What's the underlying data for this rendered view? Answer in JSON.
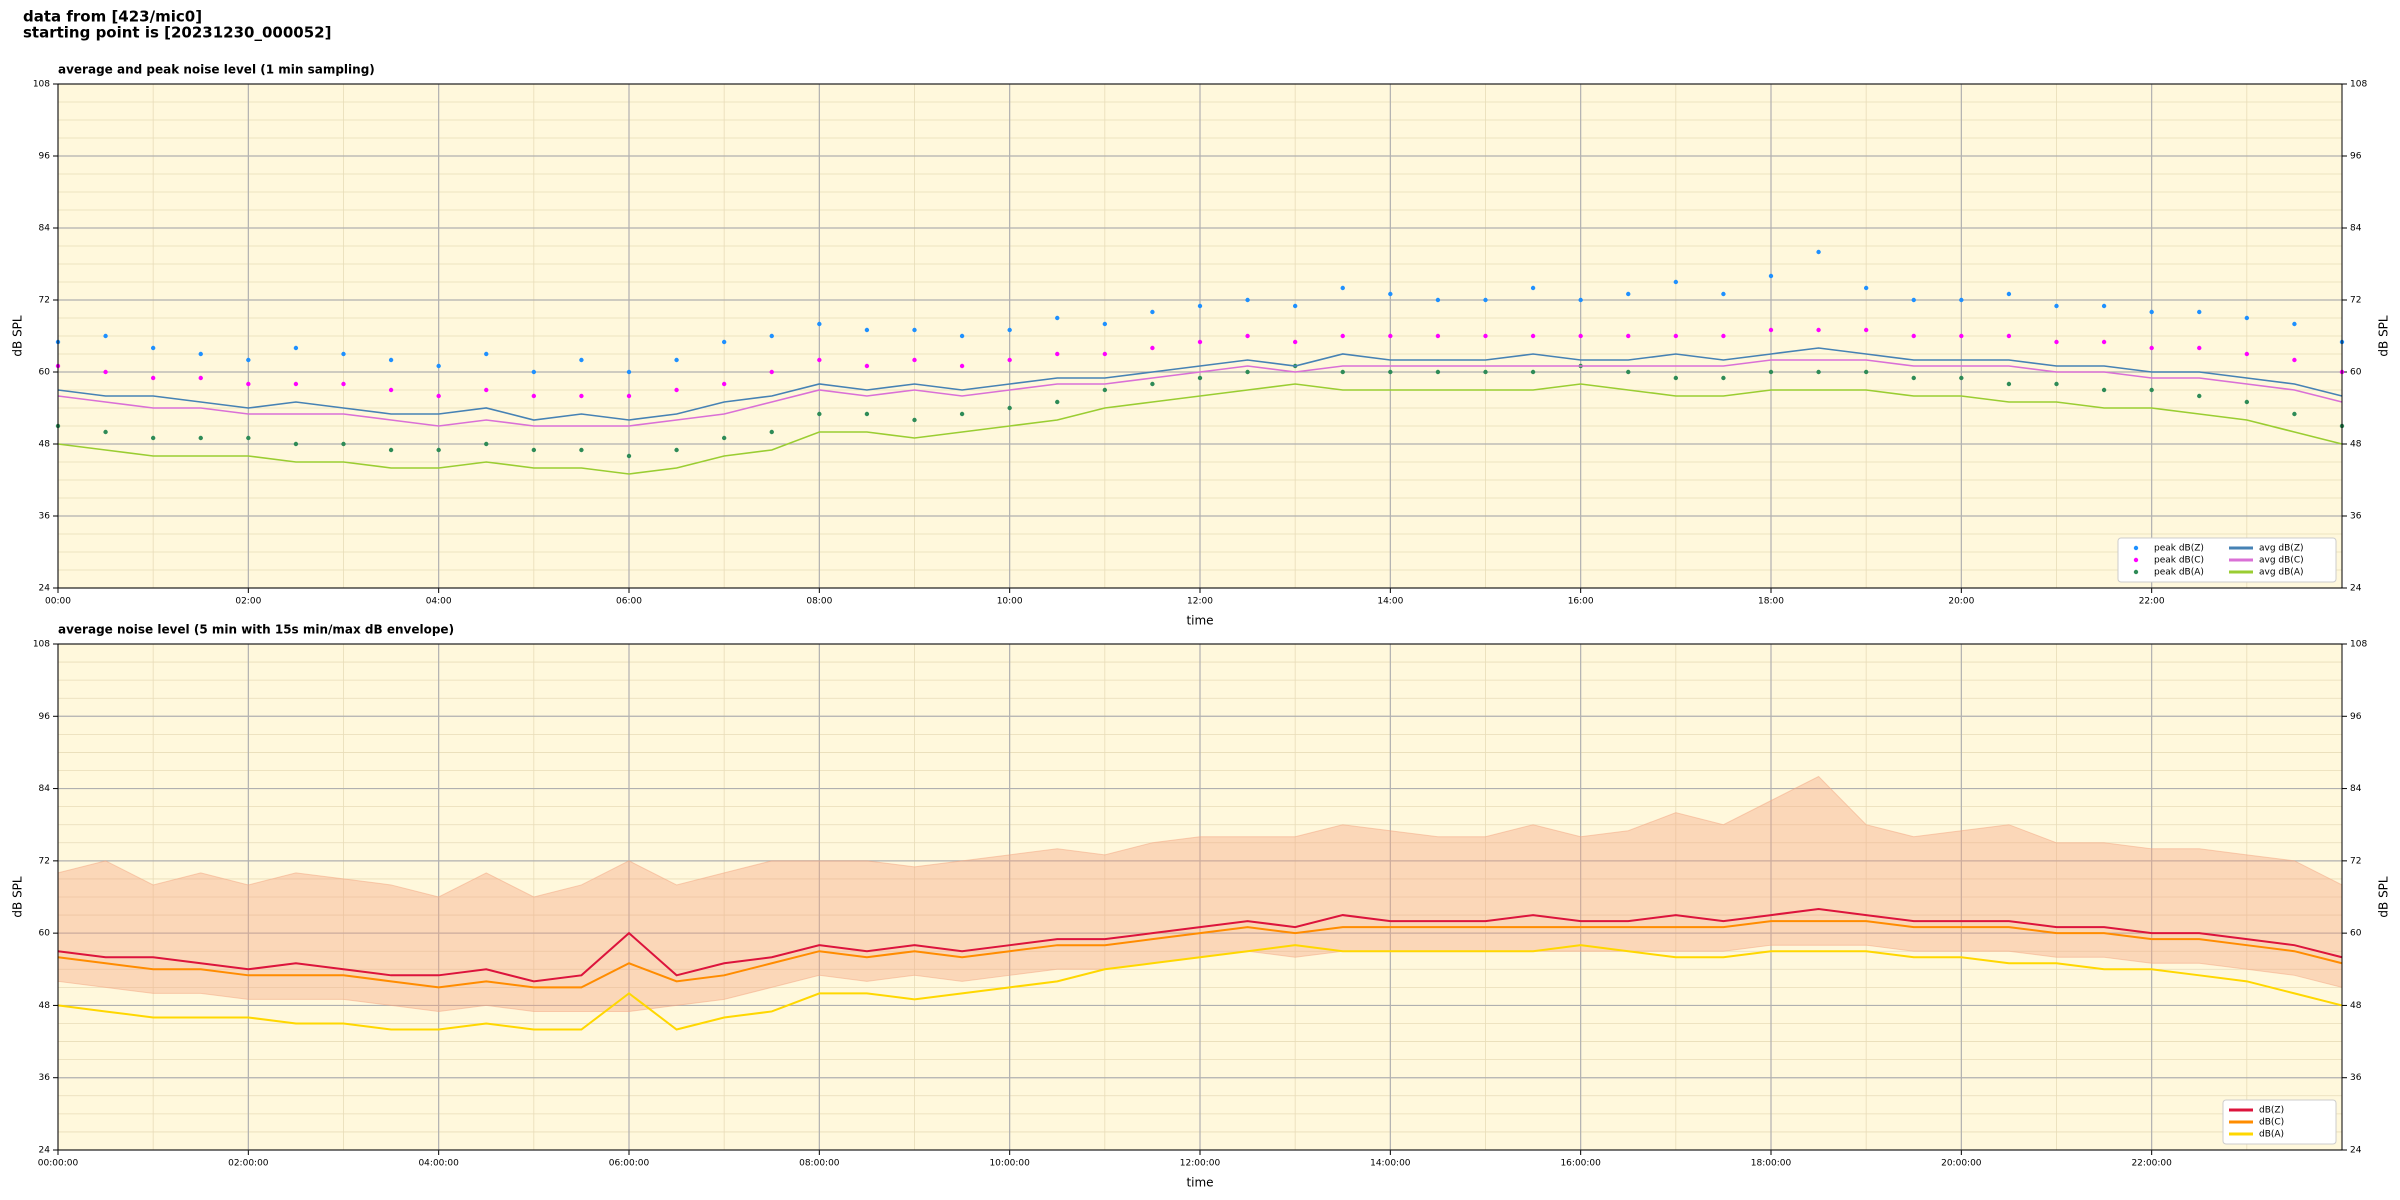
{
  "header": {
    "line1": "data from [423/mic0]",
    "line2": "starting point is [20231230_000052]"
  },
  "chart_data": [
    {
      "type": "line",
      "title": "average and peak noise level (1 min sampling)",
      "xlabel": "time",
      "ylabel": "dB SPL",
      "background": "#fff8dc",
      "grid": true,
      "legend": "lower right",
      "legend_columns": 2,
      "x": [
        0,
        0.5,
        1,
        1.5,
        2,
        2.5,
        3,
        3.5,
        4,
        4.5,
        5,
        5.5,
        6,
        6.5,
        7,
        7.5,
        8,
        8.5,
        9,
        9.5,
        10,
        10.5,
        11,
        11.5,
        12,
        12.5,
        13,
        13.5,
        14,
        14.5,
        15,
        15.5,
        16,
        16.5,
        17,
        17.5,
        18,
        18.5,
        19,
        19.5,
        20,
        20.5,
        21,
        21.5,
        22,
        22.5,
        23,
        23.5,
        24
      ],
      "xlim": [
        0,
        24
      ],
      "xticks": [
        {
          "value": 0,
          "label": "00:00"
        },
        {
          "value": 2,
          "label": "02:00"
        },
        {
          "value": 4,
          "label": "04:00"
        },
        {
          "value": 6,
          "label": "06:00"
        },
        {
          "value": 8,
          "label": "08:00"
        },
        {
          "value": 10,
          "label": "10:00"
        },
        {
          "value": 12,
          "label": "12:00"
        },
        {
          "value": 14,
          "label": "14:00"
        },
        {
          "value": 16,
          "label": "16:00"
        },
        {
          "value": 18,
          "label": "18:00"
        },
        {
          "value": 20,
          "label": "20:00"
        },
        {
          "value": 22,
          "label": "22:00"
        }
      ],
      "minor_xticks": [
        1,
        3,
        5,
        7,
        9,
        11,
        13,
        15,
        17,
        19,
        21,
        23
      ],
      "ylim": [
        24,
        108
      ],
      "yticks": [
        24,
        36,
        48,
        60,
        72,
        84,
        96,
        108
      ],
      "minor_yticks": [
        27,
        30,
        33,
        39,
        42,
        45,
        51,
        54,
        57,
        63,
        66,
        69,
        75,
        78,
        81,
        87,
        90,
        93,
        99,
        102,
        105
      ],
      "series": [
        {
          "name": "peak dB(Z)",
          "style": "dots",
          "color": "#1e90ff",
          "values": [
            65,
            66,
            64,
            63,
            62,
            64,
            63,
            62,
            61,
            63,
            60,
            62,
            60,
            62,
            65,
            66,
            68,
            67,
            67,
            66,
            67,
            69,
            68,
            70,
            71,
            72,
            71,
            74,
            73,
            72,
            72,
            74,
            72,
            73,
            75,
            73,
            76,
            80,
            74,
            72,
            72,
            73,
            71,
            71,
            70,
            70,
            69,
            68,
            65
          ]
        },
        {
          "name": "peak dB(C)",
          "style": "dots",
          "color": "#ff00ff",
          "values": [
            61,
            60,
            59,
            59,
            58,
            58,
            58,
            57,
            56,
            57,
            56,
            56,
            56,
            57,
            58,
            60,
            62,
            61,
            62,
            61,
            62,
            63,
            63,
            64,
            65,
            66,
            65,
            66,
            66,
            66,
            66,
            66,
            66,
            66,
            66,
            66,
            67,
            67,
            67,
            66,
            66,
            66,
            65,
            65,
            64,
            64,
            63,
            62,
            60
          ]
        },
        {
          "name": "peak dB(A)",
          "style": "dots",
          "color": "#2e8b57",
          "values": [
            51,
            50,
            49,
            49,
            49,
            48,
            48,
            47,
            47,
            48,
            47,
            47,
            46,
            47,
            49,
            50,
            53,
            53,
            52,
            53,
            54,
            55,
            57,
            58,
            59,
            60,
            61,
            60,
            60,
            60,
            60,
            60,
            61,
            60,
            59,
            59,
            60,
            60,
            60,
            59,
            59,
            58,
            58,
            57,
            57,
            56,
            55,
            53,
            51
          ]
        },
        {
          "name": "avg dB(Z)",
          "style": "line",
          "color": "#4682b4",
          "values": [
            57,
            56,
            56,
            55,
            54,
            55,
            54,
            53,
            53,
            54,
            52,
            53,
            52,
            53,
            55,
            56,
            58,
            57,
            58,
            57,
            58,
            59,
            59,
            60,
            61,
            62,
            61,
            63,
            62,
            62,
            62,
            63,
            62,
            62,
            63,
            62,
            63,
            64,
            63,
            62,
            62,
            62,
            61,
            61,
            60,
            60,
            59,
            58,
            56
          ]
        },
        {
          "name": "avg dB(C)",
          "style": "line",
          "color": "#da70d6",
          "values": [
            56,
            55,
            54,
            54,
            53,
            53,
            53,
            52,
            51,
            52,
            51,
            51,
            51,
            52,
            53,
            55,
            57,
            56,
            57,
            56,
            57,
            58,
            58,
            59,
            60,
            61,
            60,
            61,
            61,
            61,
            61,
            61,
            61,
            61,
            61,
            61,
            62,
            62,
            62,
            61,
            61,
            61,
            60,
            60,
            59,
            59,
            58,
            57,
            55
          ]
        },
        {
          "name": "avg dB(A)",
          "style": "line",
          "color": "#9acd32",
          "values": [
            48,
            47,
            46,
            46,
            46,
            45,
            45,
            44,
            44,
            45,
            44,
            44,
            43,
            44,
            46,
            47,
            50,
            50,
            49,
            50,
            51,
            52,
            54,
            55,
            56,
            57,
            58,
            57,
            57,
            57,
            57,
            57,
            58,
            57,
            56,
            56,
            57,
            57,
            57,
            56,
            56,
            55,
            55,
            54,
            54,
            53,
            52,
            50,
            48
          ]
        }
      ]
    },
    {
      "type": "line",
      "title": "average noise level (5 min with 15s min/max dB envelope)",
      "xlabel": "time",
      "ylabel": "dB SPL",
      "background": "#fff8dc",
      "grid": true,
      "legend": "lower right",
      "legend_columns": 1,
      "x": [
        0,
        0.5,
        1,
        1.5,
        2,
        2.5,
        3,
        3.5,
        4,
        4.5,
        5,
        5.5,
        6,
        6.5,
        7,
        7.5,
        8,
        8.5,
        9,
        9.5,
        10,
        10.5,
        11,
        11.5,
        12,
        12.5,
        13,
        13.5,
        14,
        14.5,
        15,
        15.5,
        16,
        16.5,
        17,
        17.5,
        18,
        18.5,
        19,
        19.5,
        20,
        20.5,
        21,
        21.5,
        22,
        22.5,
        23,
        23.5,
        24
      ],
      "xlim": [
        0,
        24
      ],
      "xticks": [
        {
          "value": 0,
          "label": "00:00:00"
        },
        {
          "value": 2,
          "label": "02:00:00"
        },
        {
          "value": 4,
          "label": "04:00:00"
        },
        {
          "value": 6,
          "label": "06:00:00"
        },
        {
          "value": 8,
          "label": "08:00:00"
        },
        {
          "value": 10,
          "label": "10:00:00"
        },
        {
          "value": 12,
          "label": "12:00:00"
        },
        {
          "value": 14,
          "label": "14:00:00"
        },
        {
          "value": 16,
          "label": "16:00:00"
        },
        {
          "value": 18,
          "label": "18:00:00"
        },
        {
          "value": 20,
          "label": "20:00:00"
        },
        {
          "value": 22,
          "label": "22:00:00"
        }
      ],
      "minor_xticks": [
        1,
        3,
        5,
        7,
        9,
        11,
        13,
        15,
        17,
        19,
        21,
        23
      ],
      "ylim": [
        24,
        108
      ],
      "yticks": [
        24,
        36,
        48,
        60,
        72,
        84,
        96,
        108
      ],
      "minor_yticks": [
        27,
        30,
        33,
        39,
        42,
        45,
        51,
        54,
        57,
        63,
        66,
        69,
        75,
        78,
        81,
        87,
        90,
        93,
        99,
        102,
        105
      ],
      "envelope": {
        "color": "#f4a582",
        "low": [
          52,
          51,
          50,
          50,
          49,
          49,
          49,
          48,
          47,
          48,
          47,
          47,
          47,
          48,
          49,
          51,
          53,
          52,
          53,
          52,
          53,
          54,
          54,
          55,
          56,
          57,
          56,
          57,
          57,
          57,
          57,
          57,
          57,
          57,
          57,
          57,
          58,
          58,
          58,
          57,
          57,
          57,
          56,
          56,
          55,
          55,
          54,
          53,
          51
        ],
        "high": [
          70,
          72,
          68,
          70,
          68,
          70,
          69,
          68,
          66,
          70,
          66,
          68,
          72,
          68,
          70,
          72,
          72,
          72,
          71,
          72,
          73,
          74,
          73,
          75,
          76,
          76,
          76,
          78,
          77,
          76,
          76,
          78,
          76,
          77,
          80,
          78,
          82,
          86,
          78,
          76,
          77,
          78,
          75,
          75,
          74,
          74,
          73,
          72,
          68
        ]
      },
      "series": [
        {
          "name": "dB(Z)",
          "style": "line",
          "color": "#dc143c",
          "values": [
            57,
            56,
            56,
            55,
            54,
            55,
            54,
            53,
            53,
            54,
            52,
            53,
            60,
            53,
            55,
            56,
            58,
            57,
            58,
            57,
            58,
            59,
            59,
            60,
            61,
            62,
            61,
            63,
            62,
            62,
            62,
            63,
            62,
            62,
            63,
            62,
            63,
            64,
            63,
            62,
            62,
            62,
            61,
            61,
            60,
            60,
            59,
            58,
            56
          ]
        },
        {
          "name": "dB(C)",
          "style": "line",
          "color": "#ff8c00",
          "values": [
            56,
            55,
            54,
            54,
            53,
            53,
            53,
            52,
            51,
            52,
            51,
            51,
            55,
            52,
            53,
            55,
            57,
            56,
            57,
            56,
            57,
            58,
            58,
            59,
            60,
            61,
            60,
            61,
            61,
            61,
            61,
            61,
            61,
            61,
            61,
            61,
            62,
            62,
            62,
            61,
            61,
            61,
            60,
            60,
            59,
            59,
            58,
            57,
            55
          ]
        },
        {
          "name": "dB(A)",
          "style": "line",
          "color": "#ffd700",
          "values": [
            48,
            47,
            46,
            46,
            46,
            45,
            45,
            44,
            44,
            45,
            44,
            44,
            50,
            44,
            46,
            47,
            50,
            50,
            49,
            50,
            51,
            52,
            54,
            55,
            56,
            57,
            58,
            57,
            57,
            57,
            57,
            57,
            58,
            57,
            56,
            56,
            57,
            57,
            57,
            56,
            56,
            55,
            55,
            54,
            54,
            53,
            52,
            50,
            48
          ]
        }
      ]
    }
  ]
}
